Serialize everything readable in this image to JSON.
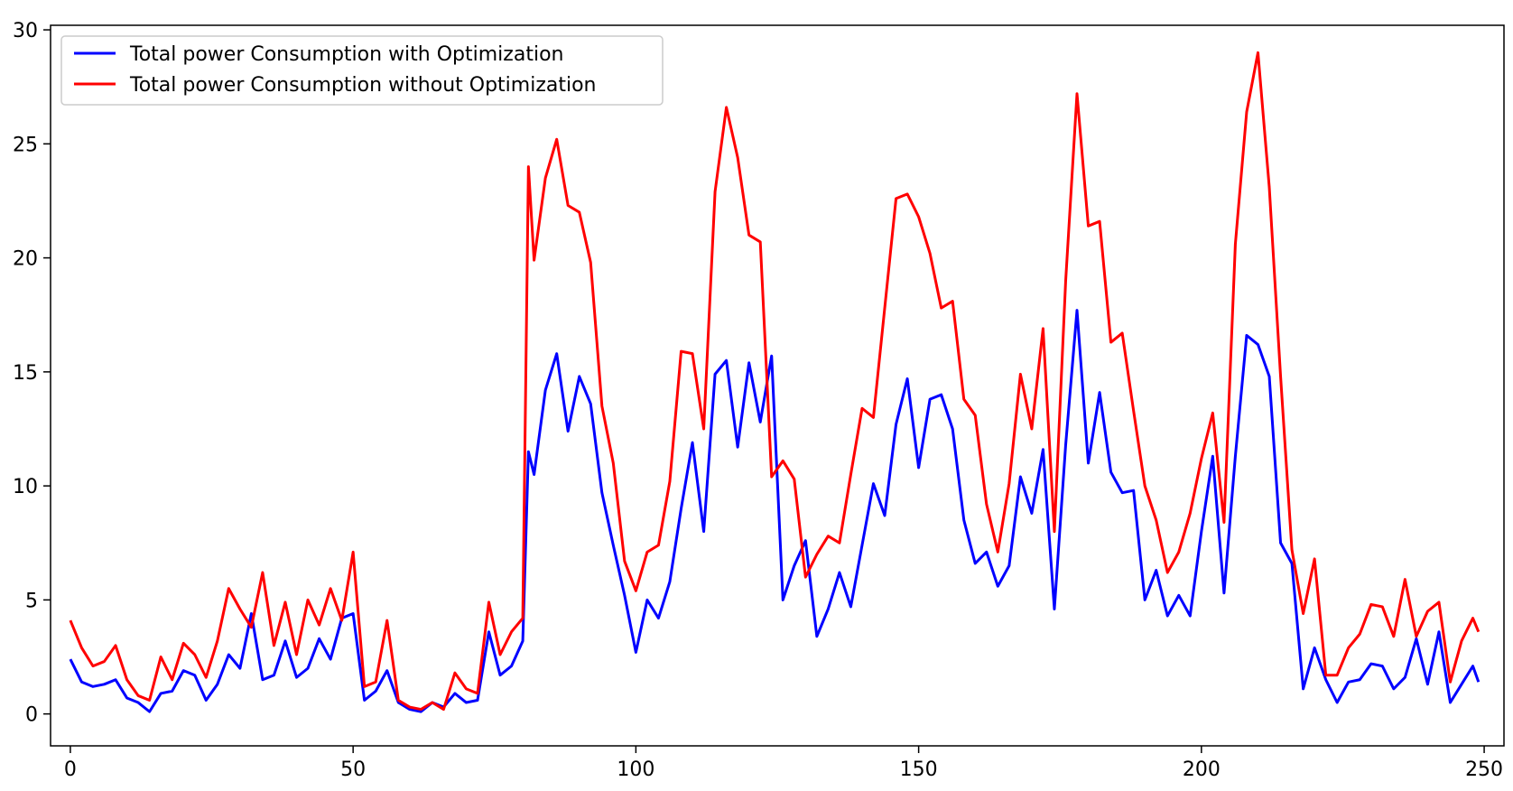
{
  "chart_data": {
    "type": "line",
    "title": "",
    "xlabel": "",
    "ylabel": "",
    "xlim": [
      -3.5,
      253.5
    ],
    "ylim": [
      -1.4,
      30.2
    ],
    "xticks": [
      0,
      50,
      100,
      150,
      200,
      250
    ],
    "yticks": [
      0,
      5,
      10,
      15,
      20,
      25,
      30
    ],
    "grid": false,
    "legend_position": "top-left",
    "series": [
      {
        "name": "Total power Consumption with Optimization",
        "color": "#0000ff",
        "x": [
          0,
          2,
          4,
          6,
          8,
          10,
          12,
          14,
          16,
          18,
          20,
          22,
          24,
          26,
          28,
          30,
          32,
          34,
          36,
          38,
          40,
          42,
          44,
          46,
          48,
          50,
          52,
          54,
          56,
          58,
          60,
          62,
          64,
          66,
          68,
          70,
          72,
          74,
          76,
          78,
          80,
          81,
          82,
          84,
          86,
          88,
          90,
          92,
          94,
          96,
          98,
          100,
          102,
          104,
          106,
          108,
          110,
          112,
          114,
          116,
          118,
          120,
          122,
          124,
          126,
          128,
          130,
          132,
          134,
          136,
          138,
          140,
          142,
          144,
          146,
          148,
          150,
          152,
          154,
          156,
          158,
          160,
          162,
          164,
          166,
          168,
          170,
          172,
          174,
          176,
          178,
          180,
          182,
          184,
          186,
          188,
          190,
          192,
          194,
          196,
          198,
          200,
          202,
          204,
          206,
          208,
          210,
          212,
          214,
          216,
          218,
          220,
          222,
          224,
          226,
          228,
          230,
          232,
          234,
          236,
          238,
          240,
          242,
          244,
          246,
          248,
          249
        ],
        "values": [
          2.4,
          1.4,
          1.2,
          1.3,
          1.5,
          0.7,
          0.5,
          0.1,
          0.9,
          1.0,
          1.9,
          1.7,
          0.6,
          1.3,
          2.6,
          2.0,
          4.4,
          1.5,
          1.7,
          3.2,
          1.6,
          2.0,
          3.3,
          2.4,
          4.2,
          4.4,
          0.6,
          1.0,
          1.9,
          0.5,
          0.2,
          0.1,
          0.5,
          0.3,
          0.9,
          0.5,
          0.6,
          3.6,
          1.7,
          2.1,
          3.2,
          11.5,
          10.5,
          14.2,
          15.8,
          12.4,
          14.8,
          13.6,
          9.7,
          7.4,
          5.2,
          2.7,
          5.0,
          4.2,
          5.8,
          9.0,
          11.9,
          8.0,
          14.9,
          15.5,
          11.7,
          15.4,
          12.8,
          15.7,
          5.0,
          6.5,
          7.6,
          3.4,
          4.6,
          6.2,
          4.7,
          7.4,
          10.1,
          8.7,
          12.7,
          14.7,
          10.8,
          13.8,
          14.0,
          12.5,
          8.5,
          6.6,
          7.1,
          5.6,
          6.5,
          10.4,
          8.8,
          11.6,
          4.6,
          11.8,
          17.7,
          11.0,
          14.1,
          10.6,
          9.7,
          9.8,
          5.0,
          6.3,
          4.3,
          5.2,
          4.3,
          8.0,
          11.3,
          5.3,
          11.3,
          16.6,
          16.2,
          14.8,
          7.5,
          6.6,
          1.1,
          2.9,
          1.5,
          0.5,
          1.4,
          1.5,
          2.2,
          2.1,
          1.1,
          1.6,
          3.3,
          1.3,
          3.6,
          0.5,
          1.3,
          2.1,
          1.4
        ]
      },
      {
        "name": "Total power Consumption without Optimization",
        "color": "#ff0000",
        "x": [
          0,
          2,
          4,
          6,
          8,
          10,
          12,
          14,
          16,
          18,
          20,
          22,
          24,
          26,
          28,
          30,
          32,
          34,
          36,
          38,
          40,
          42,
          44,
          46,
          48,
          50,
          52,
          54,
          56,
          58,
          60,
          62,
          64,
          66,
          68,
          70,
          72,
          74,
          76,
          78,
          80,
          81,
          82,
          84,
          86,
          88,
          90,
          92,
          94,
          96,
          98,
          100,
          102,
          104,
          106,
          108,
          110,
          112,
          114,
          116,
          118,
          120,
          122,
          124,
          126,
          128,
          130,
          132,
          134,
          136,
          138,
          140,
          142,
          144,
          146,
          148,
          150,
          152,
          154,
          156,
          158,
          160,
          162,
          164,
          166,
          168,
          170,
          172,
          174,
          176,
          178,
          180,
          182,
          184,
          186,
          188,
          190,
          192,
          194,
          196,
          198,
          200,
          202,
          204,
          206,
          208,
          210,
          212,
          214,
          216,
          218,
          220,
          222,
          224,
          226,
          228,
          230,
          232,
          234,
          236,
          238,
          240,
          242,
          244,
          246,
          248,
          249
        ],
        "values": [
          4.1,
          2.9,
          2.1,
          2.3,
          3.0,
          1.5,
          0.8,
          0.6,
          2.5,
          1.5,
          3.1,
          2.6,
          1.6,
          3.2,
          5.5,
          4.6,
          3.8,
          6.2,
          3.0,
          4.9,
          2.6,
          5.0,
          3.9,
          5.5,
          4.1,
          7.1,
          1.2,
          1.4,
          4.1,
          0.6,
          0.3,
          0.2,
          0.5,
          0.2,
          1.8,
          1.1,
          0.9,
          4.9,
          2.6,
          3.6,
          4.2,
          24.0,
          19.9,
          23.5,
          25.2,
          22.3,
          22.0,
          19.8,
          13.5,
          11.0,
          6.7,
          5.4,
          7.1,
          7.4,
          10.2,
          15.9,
          15.8,
          12.5,
          22.9,
          26.6,
          24.4,
          21.0,
          20.7,
          10.4,
          11.1,
          10.3,
          6.0,
          7.0,
          7.8,
          7.5,
          10.5,
          13.4,
          13.0,
          17.8,
          22.6,
          22.8,
          21.8,
          20.2,
          17.8,
          18.1,
          13.8,
          13.1,
          9.2,
          7.1,
          10.1,
          14.9,
          12.5,
          16.9,
          8.0,
          19.0,
          27.2,
          21.4,
          21.6,
          16.3,
          16.7,
          13.3,
          10.0,
          8.5,
          6.2,
          7.1,
          8.8,
          11.2,
          13.2,
          8.4,
          20.6,
          26.4,
          29.0,
          23.1,
          14.8,
          7.2,
          4.4,
          6.8,
          1.7,
          1.7,
          2.9,
          3.5,
          4.8,
          4.7,
          3.4,
          5.9,
          3.4,
          4.5,
          4.9,
          1.4,
          3.2,
          4.2,
          3.6
        ]
      }
    ]
  }
}
